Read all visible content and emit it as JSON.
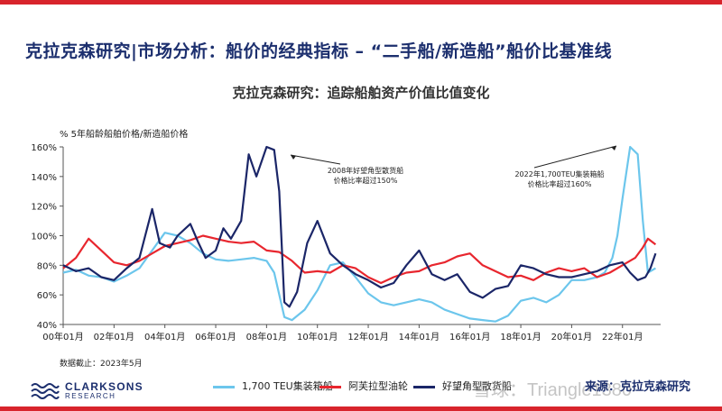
{
  "header": {
    "title": "克拉克森研究|市场分析：船价的经典指标 – “二手船/新造船”船价比基准线",
    "subtitle": "克拉克森研究：追踪船舶资产价值比值变化"
  },
  "ylabel_caption": "% 5年船龄船舶价格/新造船价格",
  "date_note": "数据截止：2023年5月",
  "logo": {
    "name": "CLARKSONS",
    "sub": "RESEARCH"
  },
  "source_label": "来源：克拉克森研究",
  "watermark": "雪球：Triangle1380",
  "colors": {
    "teu": "#6cc6ec",
    "tanker": "#e8262e",
    "bulk": "#1b2668",
    "title": "#1c2f6e",
    "frame": "#d8242c"
  },
  "chart_data": {
    "type": "line",
    "ylabel": "% 5年船龄船舶价格/新造船价格",
    "ylim": [
      40,
      160
    ],
    "yticks": [
      "40%",
      "60%",
      "80%",
      "100%",
      "120%",
      "140%",
      "160%"
    ],
    "xlim": [
      2000,
      2023.5
    ],
    "xticks": [
      "00年01月",
      "02年01月",
      "04年01月",
      "06年01月",
      "08年01月",
      "10年01月",
      "12年01月",
      "14年01月",
      "16年01月",
      "18年01月",
      "20年01月",
      "22年01月"
    ],
    "grid": false,
    "legend_position": "bottom",
    "series": [
      {
        "name": "1,700 TEU集装箱船",
        "x": [
          2000,
          2000.5,
          2001,
          2001.5,
          2002,
          2002.5,
          2003,
          2003.5,
          2004,
          2004.5,
          2005,
          2005.5,
          2006,
          2006.5,
          2007,
          2007.5,
          2008,
          2008.3,
          2008.7,
          2009,
          2009.5,
          2010,
          2010.5,
          2011,
          2011.5,
          2012,
          2012.5,
          2013,
          2013.5,
          2014,
          2014.5,
          2015,
          2015.5,
          2016,
          2016.5,
          2017,
          2017.5,
          2018,
          2018.5,
          2019,
          2019.5,
          2020,
          2020.5,
          2021,
          2021.3,
          2021.6,
          2021.8,
          2022,
          2022.3,
          2022.6,
          2022.8,
          2023,
          2023.3
        ],
        "values": [
          75,
          77,
          73,
          72,
          69,
          73,
          78,
          90,
          102,
          100,
          95,
          88,
          84,
          83,
          84,
          85,
          83,
          75,
          45,
          43,
          50,
          63,
          80,
          82,
          72,
          61,
          55,
          53,
          55,
          57,
          55,
          50,
          47,
          44,
          43,
          42,
          46,
          56,
          58,
          55,
          60,
          70,
          70,
          72,
          75,
          85,
          100,
          125,
          160,
          155,
          110,
          75,
          78
        ]
      },
      {
        "name": "阿芙拉型油轮",
        "x": [
          2000,
          2000.5,
          2001,
          2001.5,
          2002,
          2002.5,
          2003,
          2003.5,
          2004,
          2004.5,
          2005,
          2005.5,
          2006,
          2006.5,
          2007,
          2007.5,
          2008,
          2008.5,
          2009,
          2009.5,
          2010,
          2010.5,
          2011,
          2011.5,
          2012,
          2012.5,
          2013,
          2013.5,
          2014,
          2014.5,
          2015,
          2015.5,
          2016,
          2016.5,
          2017,
          2017.5,
          2018,
          2018.5,
          2019,
          2019.5,
          2020,
          2020.5,
          2021,
          2021.5,
          2022,
          2022.5,
          2022.8,
          2023,
          2023.3
        ],
        "values": [
          78,
          85,
          98,
          90,
          82,
          80,
          83,
          88,
          93,
          95,
          97,
          100,
          98,
          96,
          95,
          96,
          90,
          89,
          83,
          75,
          76,
          75,
          80,
          78,
          72,
          68,
          72,
          75,
          76,
          80,
          82,
          86,
          88,
          80,
          76,
          72,
          73,
          70,
          75,
          78,
          76,
          78,
          72,
          75,
          80,
          85,
          92,
          98,
          94
        ]
      },
      {
        "name": "好望角型散货船",
        "x": [
          2000,
          2000.5,
          2001,
          2001.5,
          2002,
          2002.5,
          2003,
          2003.5,
          2003.8,
          2004.2,
          2004.5,
          2005,
          2005.3,
          2005.6,
          2006,
          2006.3,
          2006.6,
          2007,
          2007.3,
          2007.6,
          2008,
          2008.3,
          2008.5,
          2008.7,
          2008.9,
          2009.2,
          2009.6,
          2010,
          2010.5,
          2011,
          2011.5,
          2012,
          2012.5,
          2013,
          2013.5,
          2014,
          2014.5,
          2015,
          2015.5,
          2016,
          2016.5,
          2017,
          2017.5,
          2018,
          2018.5,
          2019,
          2019.5,
          2020,
          2020.5,
          2021,
          2021.5,
          2022,
          2022.3,
          2022.6,
          2022.9,
          2023.1,
          2023.3
        ],
        "values": [
          80,
          76,
          78,
          72,
          70,
          78,
          85,
          118,
          95,
          92,
          100,
          108,
          96,
          85,
          90,
          105,
          98,
          110,
          155,
          140,
          160,
          158,
          130,
          55,
          52,
          62,
          95,
          110,
          88,
          80,
          74,
          70,
          65,
          68,
          80,
          90,
          74,
          70,
          74,
          62,
          58,
          64,
          66,
          80,
          78,
          74,
          72,
          72,
          74,
          76,
          80,
          82,
          75,
          70,
          72,
          78,
          88
        ]
      }
    ],
    "annotations": [
      {
        "lines": [
          "2008年好望角型散货船",
          "价格比率超过150%"
        ],
        "x": 2008.0,
        "y": 160
      },
      {
        "lines": [
          "2022年1,700TEU集装箱船",
          "价格比率超过160%"
        ],
        "x": 2022.3,
        "y": 160
      }
    ]
  }
}
